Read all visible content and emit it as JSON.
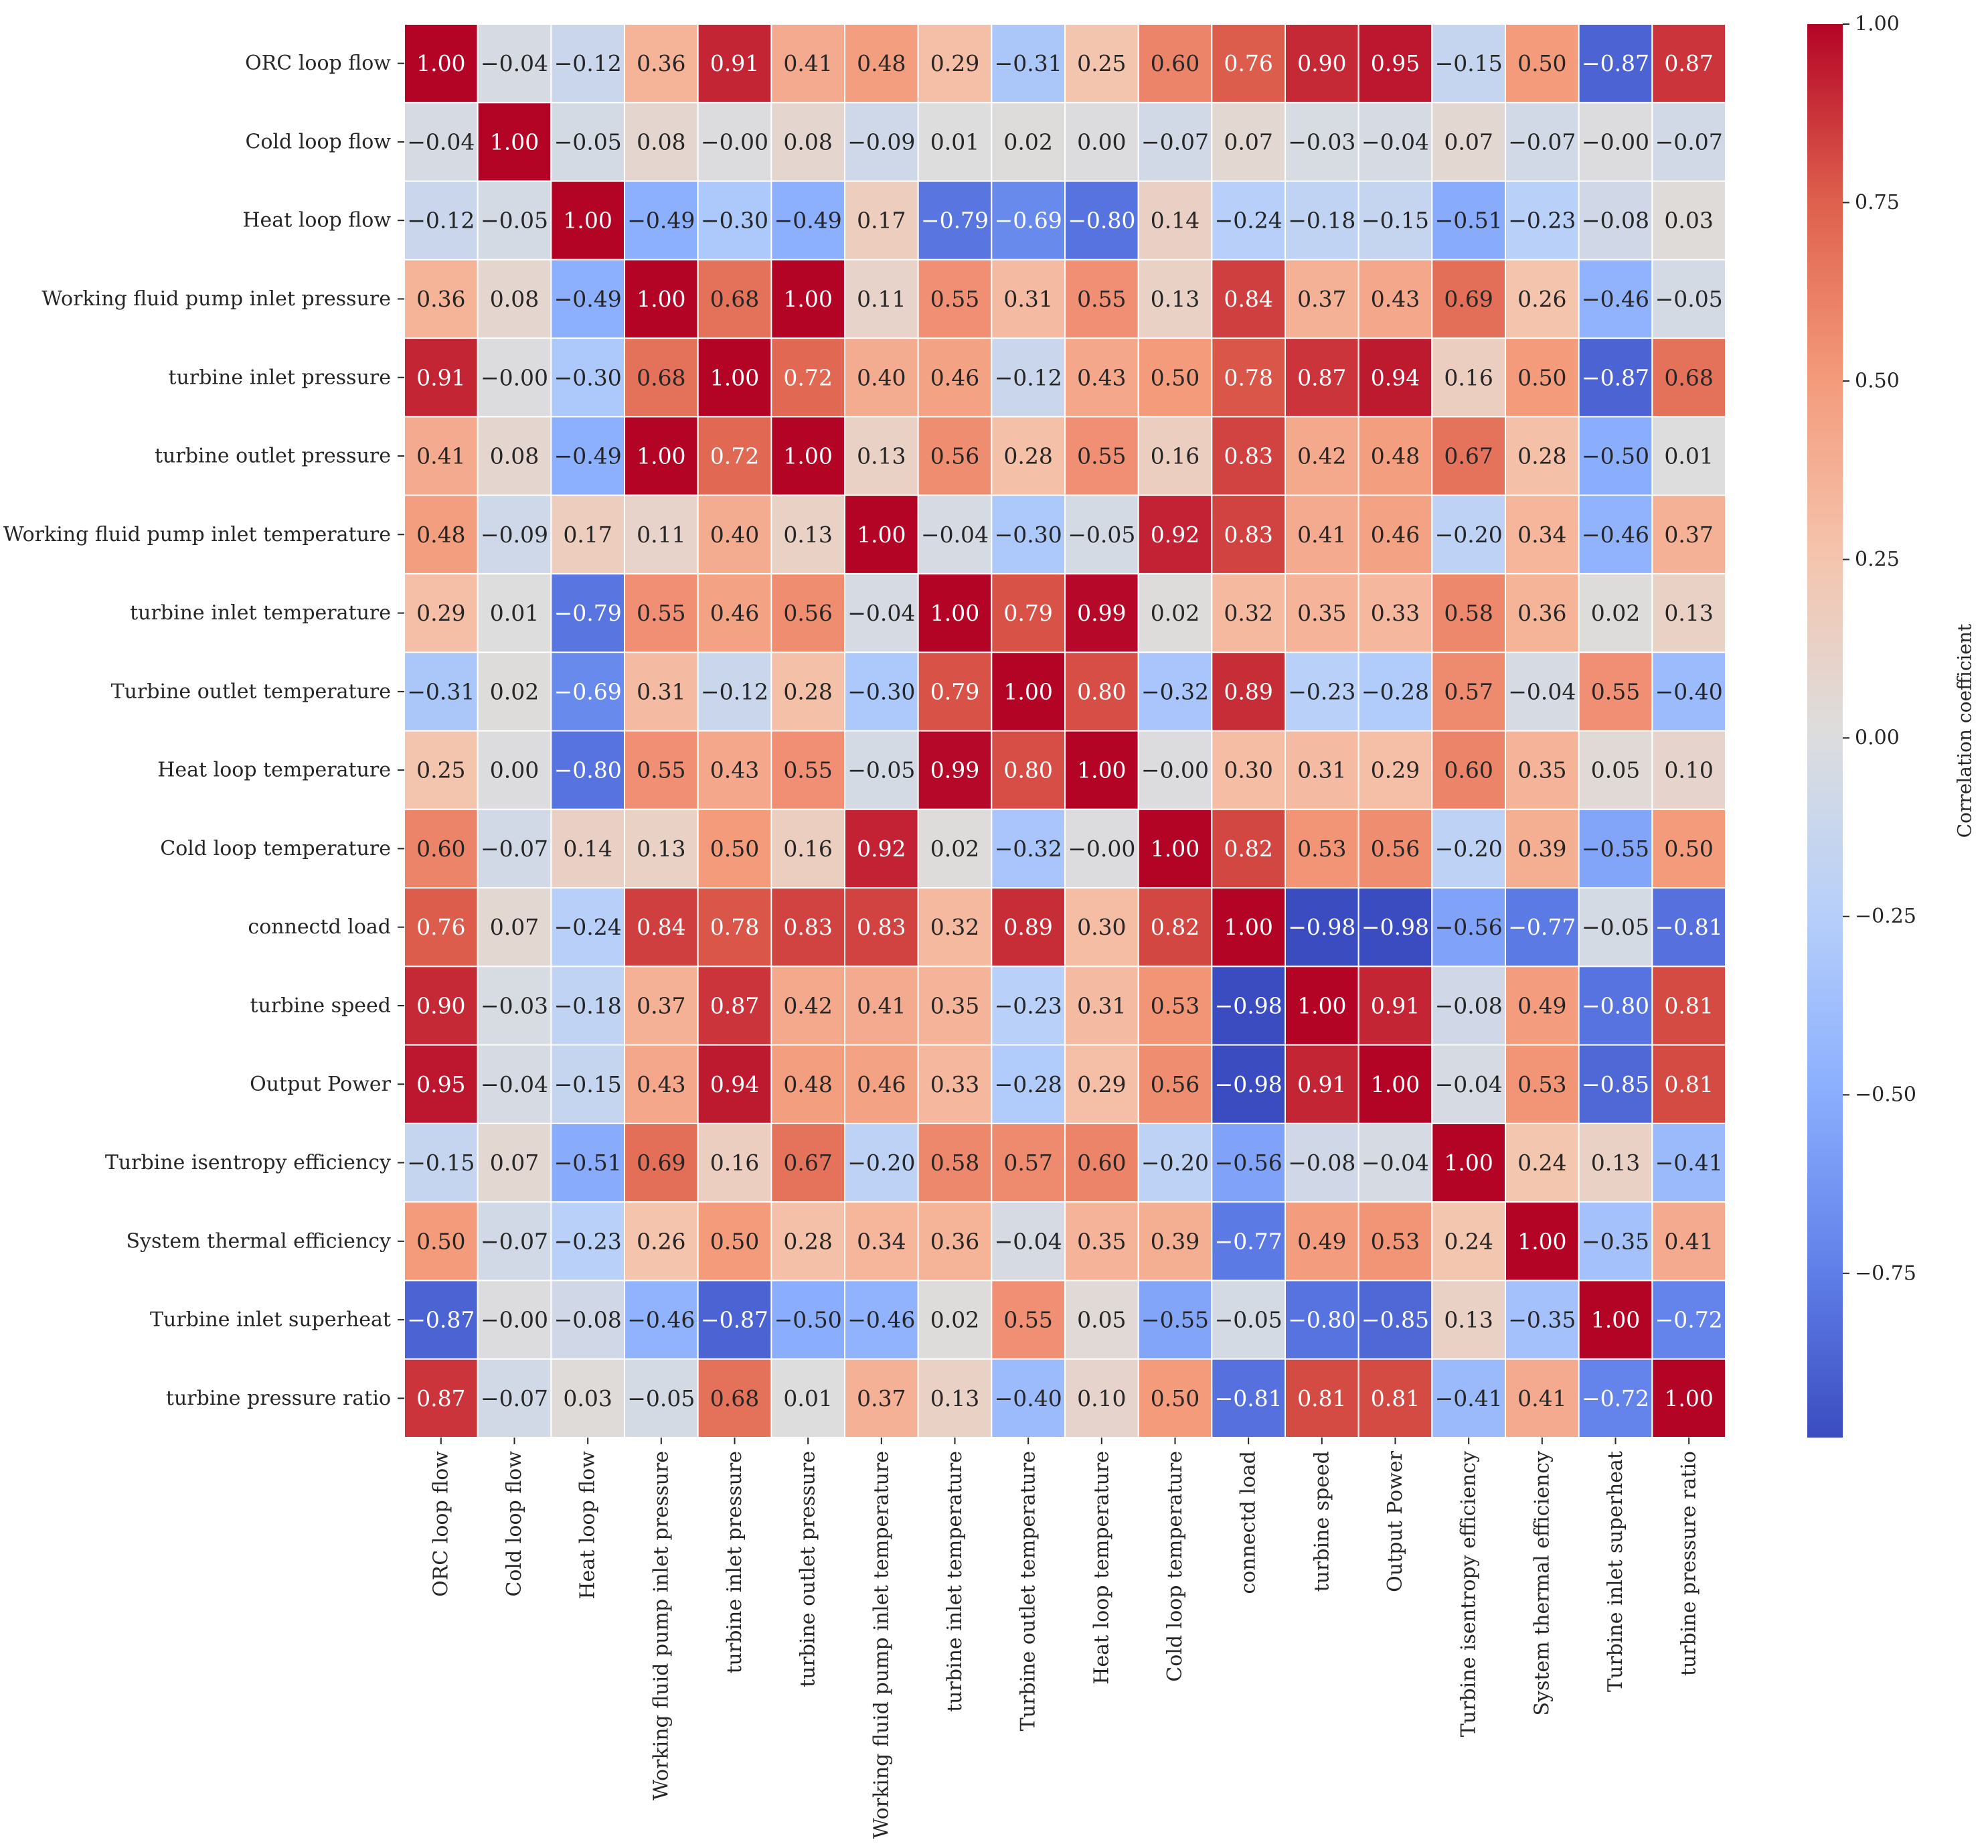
{
  "chart_data": {
    "type": "heatmap",
    "title": "",
    "xlabel": "",
    "ylabel": "",
    "labels": [
      "ORC loop flow",
      "Cold loop flow",
      "Heat loop flow",
      "Working fluid pump inlet pressure",
      "turbine inlet pressure",
      "turbine outlet pressure",
      "Working fluid pump inlet temperature",
      "turbine inlet temperature",
      "Turbine outlet temperature",
      "Heat loop temperature",
      "Cold loop temperature",
      "connectd load",
      "turbine speed",
      "Output Power",
      "Turbine isentropy efficiency",
      "System thermal efficiency",
      "Turbine inlet superheat",
      "turbine pressure ratio"
    ],
    "values": [
      [
        1.0,
        -0.04,
        -0.12,
        0.36,
        0.91,
        0.41,
        0.48,
        0.29,
        -0.31,
        0.25,
        0.6,
        0.76,
        0.9,
        0.95,
        -0.15,
        0.5,
        -0.87,
        0.87
      ],
      [
        -0.04,
        1.0,
        -0.05,
        0.08,
        -0.0,
        0.08,
        -0.09,
        0.01,
        0.02,
        0.0,
        -0.07,
        0.07,
        -0.03,
        -0.04,
        0.07,
        -0.07,
        -0.0,
        -0.07
      ],
      [
        -0.12,
        -0.05,
        1.0,
        -0.49,
        -0.3,
        -0.49,
        0.17,
        -0.79,
        -0.69,
        -0.8,
        0.14,
        -0.24,
        -0.18,
        -0.15,
        -0.51,
        -0.23,
        -0.08,
        0.03
      ],
      [
        0.36,
        0.08,
        -0.49,
        1.0,
        0.68,
        1.0,
        0.11,
        0.55,
        0.31,
        0.55,
        0.13,
        0.84,
        0.37,
        0.43,
        0.69,
        0.26,
        -0.46,
        -0.05
      ],
      [
        0.91,
        -0.0,
        -0.3,
        0.68,
        1.0,
        0.72,
        0.4,
        0.46,
        -0.12,
        0.43,
        0.5,
        0.78,
        0.87,
        0.94,
        0.16,
        0.5,
        -0.87,
        0.68
      ],
      [
        0.41,
        0.08,
        -0.49,
        1.0,
        0.72,
        1.0,
        0.13,
        0.56,
        0.28,
        0.55,
        0.16,
        0.83,
        0.42,
        0.48,
        0.67,
        0.28,
        -0.5,
        0.01
      ],
      [
        0.48,
        -0.09,
        0.17,
        0.11,
        0.4,
        0.13,
        1.0,
        -0.04,
        -0.3,
        -0.05,
        0.92,
        0.83,
        0.41,
        0.46,
        -0.2,
        0.34,
        -0.46,
        0.37
      ],
      [
        0.29,
        0.01,
        -0.79,
        0.55,
        0.46,
        0.56,
        -0.04,
        1.0,
        0.79,
        0.99,
        0.02,
        0.32,
        0.35,
        0.33,
        0.58,
        0.36,
        0.02,
        0.13
      ],
      [
        -0.31,
        0.02,
        -0.69,
        0.31,
        -0.12,
        0.28,
        -0.3,
        0.79,
        1.0,
        0.8,
        -0.32,
        0.89,
        -0.23,
        -0.28,
        0.57,
        -0.04,
        0.55,
        -0.4
      ],
      [
        0.25,
        0.0,
        -0.8,
        0.55,
        0.43,
        0.55,
        -0.05,
        0.99,
        0.8,
        1.0,
        -0.0,
        0.3,
        0.31,
        0.29,
        0.6,
        0.35,
        0.05,
        0.1
      ],
      [
        0.6,
        -0.07,
        0.14,
        0.13,
        0.5,
        0.16,
        0.92,
        0.02,
        -0.32,
        -0.0,
        1.0,
        0.82,
        0.53,
        0.56,
        -0.2,
        0.39,
        -0.55,
        0.5
      ],
      [
        0.76,
        0.07,
        -0.24,
        0.84,
        0.78,
        0.83,
        0.83,
        0.32,
        0.89,
        0.3,
        0.82,
        1.0,
        -0.98,
        -0.98,
        -0.56,
        -0.77,
        -0.05,
        -0.81
      ],
      [
        0.9,
        -0.03,
        -0.18,
        0.37,
        0.87,
        0.42,
        0.41,
        0.35,
        -0.23,
        0.31,
        0.53,
        -0.98,
        1.0,
        0.91,
        -0.08,
        0.49,
        -0.8,
        0.81
      ],
      [
        0.95,
        -0.04,
        -0.15,
        0.43,
        0.94,
        0.48,
        0.46,
        0.33,
        -0.28,
        0.29,
        0.56,
        -0.98,
        0.91,
        1.0,
        -0.04,
        0.53,
        -0.85,
        0.81
      ],
      [
        -0.15,
        0.07,
        -0.51,
        0.69,
        0.16,
        0.67,
        -0.2,
        0.58,
        0.57,
        0.6,
        -0.2,
        -0.56,
        -0.08,
        -0.04,
        1.0,
        0.24,
        0.13,
        -0.41
      ],
      [
        0.5,
        -0.07,
        -0.23,
        0.26,
        0.5,
        0.28,
        0.34,
        0.36,
        -0.04,
        0.35,
        0.39,
        -0.77,
        0.49,
        0.53,
        0.24,
        1.0,
        -0.35,
        0.41
      ],
      [
        -0.87,
        -0.0,
        -0.08,
        -0.46,
        -0.87,
        -0.5,
        -0.46,
        0.02,
        0.55,
        0.05,
        -0.55,
        -0.05,
        -0.8,
        -0.85,
        0.13,
        -0.35,
        1.0,
        -0.72
      ],
      [
        0.87,
        -0.07,
        0.03,
        -0.05,
        0.68,
        0.01,
        0.37,
        0.13,
        -0.4,
        0.1,
        0.5,
        -0.81,
        0.81,
        0.81,
        -0.41,
        0.41,
        -0.72,
        1.0
      ]
    ],
    "color_scale": {
      "name": "coolwarm",
      "range": [
        -1.0,
        1.0
      ],
      "low_color": "#3b4cc0",
      "mid_color": "#dddddd",
      "high_color": "#b40426"
    },
    "colorbar": {
      "label": "Correlation coefficient",
      "ticks": [
        "1.00",
        "0.75",
        "0.50",
        "0.25",
        "0.00",
        "−0.25",
        "−0.50",
        "−0.75"
      ],
      "tick_values": [
        1.0,
        0.75,
        0.5,
        0.25,
        0.0,
        -0.25,
        -0.5,
        -0.75
      ],
      "range": [
        -0.98,
        1.0
      ]
    },
    "annotate_format": "2 decimals",
    "grid": "white cell borders"
  }
}
